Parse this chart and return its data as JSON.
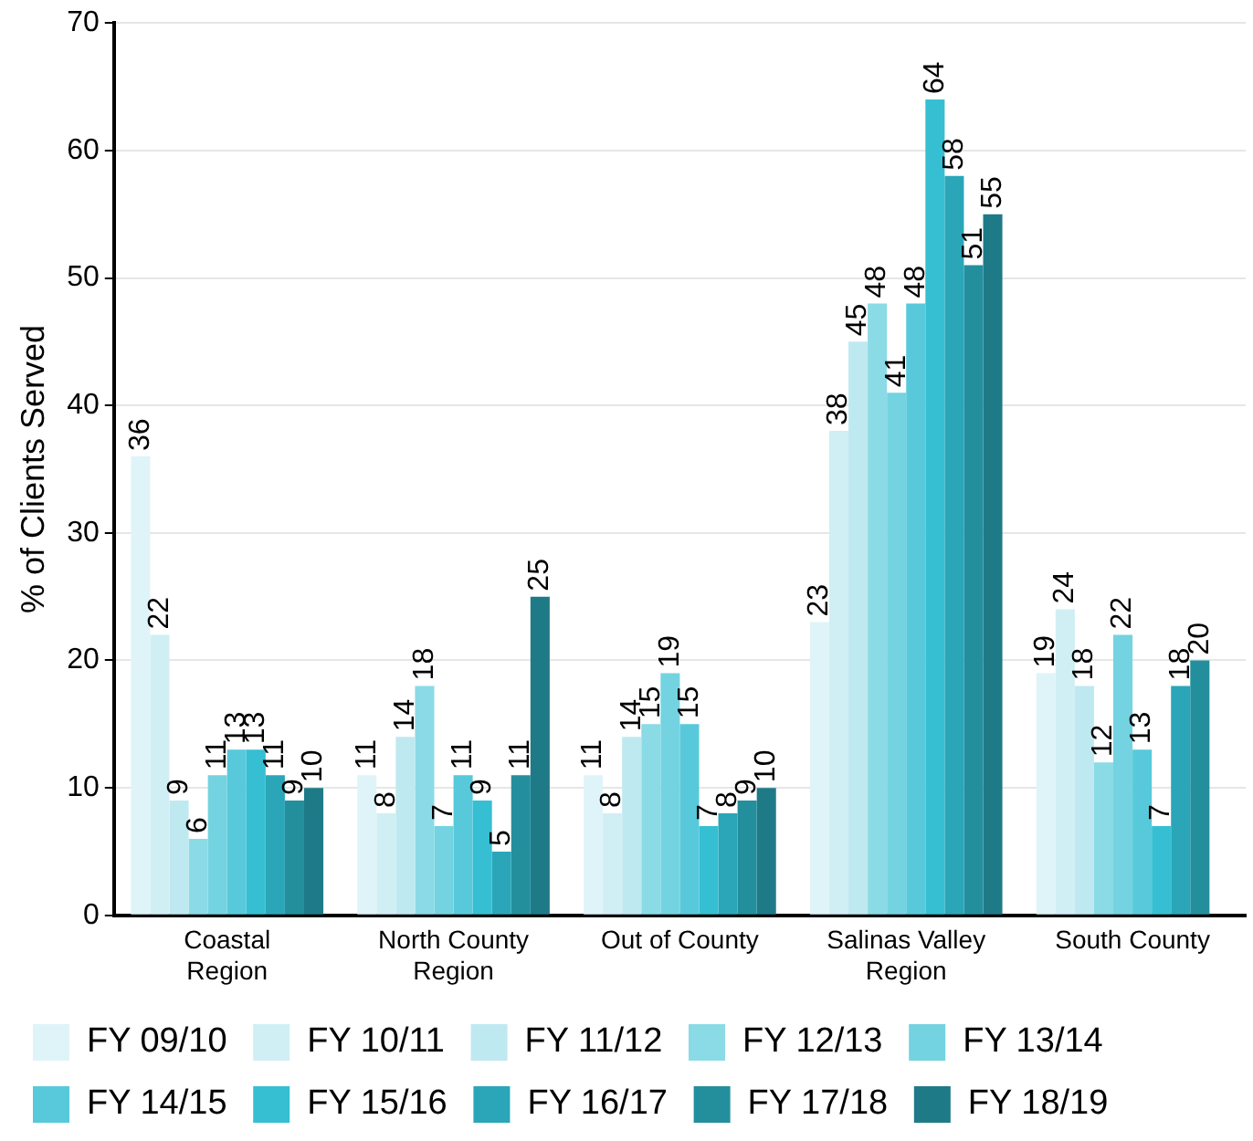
{
  "chart_data": {
    "type": "bar",
    "ylabel": "% of Clients Served",
    "categories": [
      "Coastal Region",
      "North County Region",
      "Out of County",
      "Salinas Valley Region",
      "South County"
    ],
    "series": [
      {
        "name": "FY 09/10",
        "color": "#dff4f8",
        "values": [
          36,
          11,
          11,
          23,
          19
        ]
      },
      {
        "name": "FY 10/11",
        "color": "#d0eff4",
        "values": [
          22,
          8,
          8,
          38,
          24
        ]
      },
      {
        "name": "FY 11/12",
        "color": "#bfe9f0",
        "values": [
          9,
          14,
          14,
          45,
          18
        ]
      },
      {
        "name": "FY 12/13",
        "color": "#8adbe6",
        "values": [
          6,
          18,
          15,
          48,
          12
        ]
      },
      {
        "name": "FY 13/14",
        "color": "#74d3e0",
        "values": [
          11,
          7,
          19,
          41,
          22
        ]
      },
      {
        "name": "FY 14/15",
        "color": "#57c9da",
        "values": [
          13,
          11,
          15,
          48,
          13
        ]
      },
      {
        "name": "FY 15/16",
        "color": "#36bfd2",
        "values": [
          13,
          9,
          7,
          64,
          7
        ]
      },
      {
        "name": "FY 16/17",
        "color": "#2aa6b8",
        "values": [
          11,
          5,
          8,
          58,
          18
        ]
      },
      {
        "name": "FY 17/18",
        "color": "#238f9d",
        "values": [
          9,
          11,
          9,
          51,
          20
        ]
      },
      {
        "name": "FY 18/19",
        "color": "#1f7a88",
        "values": [
          10,
          25,
          10,
          55,
          null
        ]
      }
    ],
    "ylim": [
      0,
      70
    ],
    "yticks": [
      0,
      10,
      20,
      30,
      40,
      50,
      60,
      70
    ],
    "grid": "y",
    "legend": "bottom",
    "data_labels": true
  }
}
